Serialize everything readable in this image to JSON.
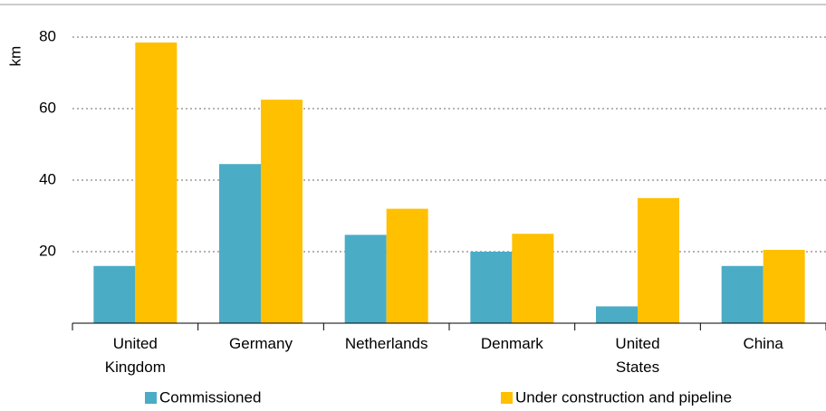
{
  "chart_data": {
    "type": "bar",
    "y_label": "km",
    "categories": [
      "United Kingdom",
      "Germany",
      "Netherlands",
      "Denmark",
      "United States",
      "China"
    ],
    "series": [
      {
        "name": "Commissioned",
        "color": "#4bacc6",
        "values": [
          16,
          44.5,
          24.7,
          20,
          4.7,
          16
        ]
      },
      {
        "name": "Under construction and pipeline",
        "color": "#ffc000",
        "values": [
          78.5,
          62.5,
          32,
          25,
          35,
          20.5
        ]
      }
    ],
    "ylim": [
      0,
      80
    ],
    "yticks": [
      20,
      40,
      60,
      80
    ],
    "grid": true,
    "legend": "bottom"
  }
}
